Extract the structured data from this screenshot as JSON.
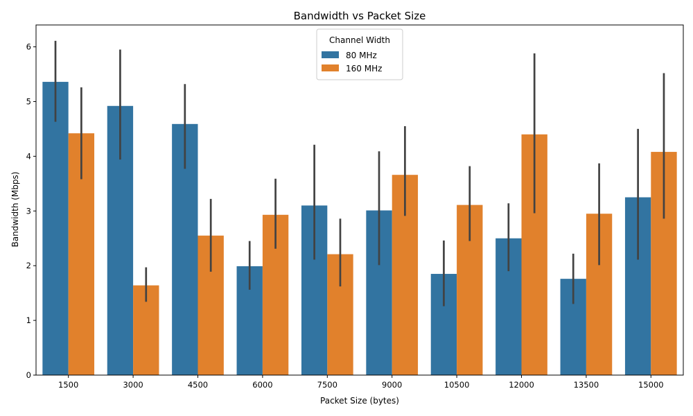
{
  "chart_data": {
    "type": "bar",
    "title": "Bandwidth vs Packet Size",
    "xlabel": "Packet Size (bytes)",
    "ylabel": "Bandwidth (Mbps)",
    "categories": [
      "1500",
      "3000",
      "4500",
      "6000",
      "7500",
      "9000",
      "10500",
      "12000",
      "13500",
      "15000"
    ],
    "ylim": [
      0,
      6.4
    ],
    "yticks": [
      "0",
      "1",
      "2",
      "3",
      "4",
      "5",
      "6"
    ],
    "legend": {
      "title": "Channel Width",
      "placement": "top-center"
    },
    "series": [
      {
        "name": "80 MHz",
        "color": "#3274a1",
        "values": [
          5.36,
          4.92,
          4.59,
          1.99,
          3.1,
          3.01,
          1.85,
          2.5,
          1.76,
          3.25
        ],
        "ci_low": [
          4.63,
          3.94,
          3.77,
          1.56,
          2.11,
          2.01,
          1.26,
          1.9,
          1.3,
          2.11
        ],
        "ci_high": [
          6.11,
          5.95,
          5.32,
          2.45,
          4.21,
          4.09,
          2.46,
          3.14,
          2.22,
          4.5
        ]
      },
      {
        "name": "160 MHz",
        "color": "#e1812c",
        "values": [
          4.42,
          1.64,
          2.55,
          2.93,
          2.21,
          3.66,
          3.11,
          4.4,
          2.95,
          4.08
        ],
        "ci_low": [
          3.58,
          1.34,
          1.89,
          2.31,
          1.62,
          2.91,
          2.45,
          2.96,
          2.01,
          2.86
        ],
        "ci_high": [
          5.26,
          1.97,
          3.22,
          3.59,
          2.86,
          4.55,
          3.82,
          5.88,
          3.87,
          5.52
        ]
      }
    ],
    "error_color": "#424242",
    "grid": false
  }
}
